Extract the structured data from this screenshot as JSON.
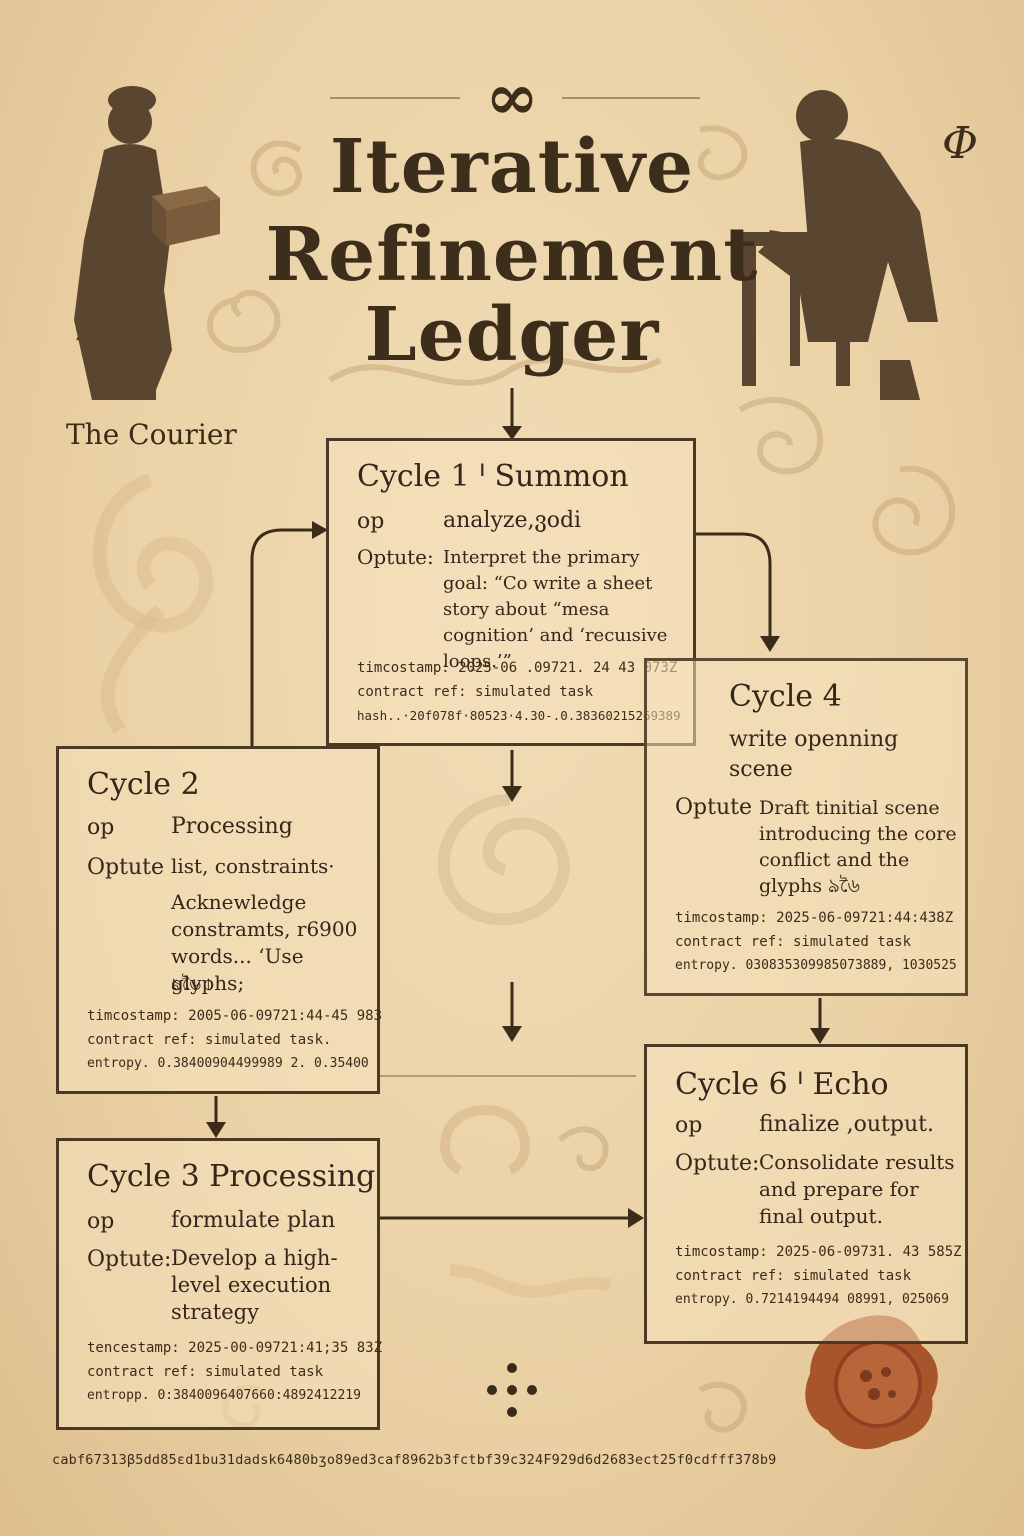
{
  "title": [
    "Iterative",
    "Refinement",
    "Ledger"
  ],
  "symbols": {
    "infinity": "∞",
    "phi": "Φ"
  },
  "courier_label": "The Courier",
  "cycles": {
    "c1": {
      "title": "Cycle 1 ᑊ Summon",
      "op_label": "op",
      "op_value": "analyze,ვodi",
      "output_label": "Optute:",
      "output_value": "Interpret the primary goal: “Co write a sheet story about “mesa cognition’ and ‘recuısive loops.’”",
      "timestamp": "timcostamp: 2025-06 .09721. 24 43 073Z",
      "contract": "contract ref: simulated task",
      "extra": "hash..·20f078f·80523·4.30-.0.38360215269389"
    },
    "c2": {
      "title": "Cycle 2",
      "op_label": "op",
      "op_value": "Processing",
      "output_label": "Optute",
      "output_value": "list, constraints·",
      "output_value_2": "Acknewledge constramts, r6900 words... ‘Use glyphs;",
      "glyphs": "ঌ৬ৈ ৷",
      "timestamp": "timcostamp: 2005-06-09721:44-45 983",
      "contract": "contract ref: simulated task.",
      "extra": "entropy. 0.38400904499989 2. 0.35400"
    },
    "c3": {
      "title": "Cycle 3  Processing",
      "op_label": "op",
      "op_value": "formulate plan",
      "output_label": "Optute:",
      "output_value": "Develop a high-level execution strategy",
      "timestamp": "tencestamp: 2025-00-09721:41;35 83Z",
      "contract": "contract ref: simulated task",
      "extra": "entropp. 0:3840096407660:4892412219"
    },
    "c4": {
      "title": "Cycle 4",
      "subtitle": "write openning scene",
      "output_label": "Optute",
      "output_value": "Draft tinitial scene introducing the core conflict and the glyphs ঌ৬ৈ",
      "timestamp": "timcostamp: 2025-06-09721:44:438Z",
      "contract": "contract ref: simulated task",
      "extra": "entropy. 030835309985073889, 1030525"
    },
    "c6": {
      "title": "Cycle 6 ᑊ Echo",
      "op_label": "op",
      "op_value": "finalize ,output.",
      "output_label": "Optute:",
      "output_value": "Consolidate results and prepare for final output.",
      "timestamp": "timcostamp: 2025-06-09731. 43 585Z",
      "contract": "contract ref: simulated task",
      "extra": "entropy. 0.7214194494 08991, 025069"
    }
  },
  "footer_hash": "cabf67313β5dd85ɛd1bu31dadsk6480bʒo89ed3caf8962b3fctbf39c324F929d6d2683ect25f0cdfff378b9",
  "colors": {
    "parchment": "#ebd2a6",
    "ink": "#3b2c1a",
    "silhouette": "#5a4530",
    "wax_seal": "#a9552b"
  }
}
